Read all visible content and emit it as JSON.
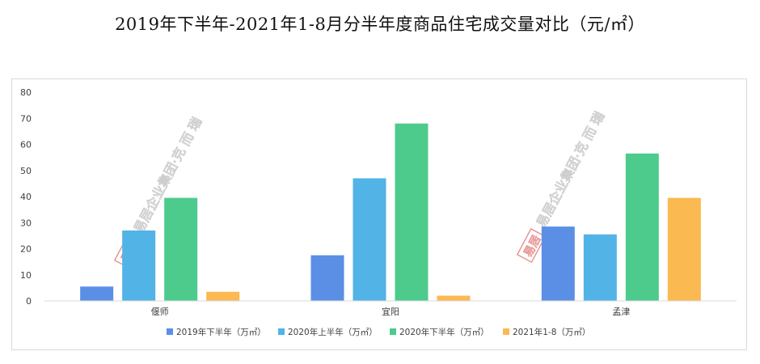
{
  "title": "2019年下半年-2021年1-8月分半年度商品住宅成交量对比（元/㎡）",
  "watermark": {
    "text": "易居企业集团·克 而 瑞",
    "seal_text": "易居"
  },
  "colors": {
    "series": [
      "#5b8fe6",
      "#52b3e6",
      "#4ccb8d",
      "#fbb952"
    ],
    "axis": "#d9d9d9",
    "text": "#404040",
    "watermark": "#c9c9c9",
    "seal": "#e58a8a"
  },
  "chart_data": {
    "type": "bar",
    "title": "2019年下半年-2021年1-8月分半年度商品住宅成交量对比（元/㎡）",
    "categories": [
      "偃师",
      "宜阳",
      "孟津"
    ],
    "series": [
      {
        "name": "2019年下半年（万㎡）",
        "values": [
          5.5,
          17.5,
          28.5
        ]
      },
      {
        "name": "2020年上半年（万㎡）",
        "values": [
          27,
          47,
          25.5
        ]
      },
      {
        "name": "2020年下半年（万㎡）",
        "values": [
          39.5,
          68,
          56.5
        ]
      },
      {
        "name": "2021年1-8（万㎡）",
        "values": [
          3.5,
          2,
          39.5
        ]
      }
    ],
    "ylim": [
      0,
      80
    ],
    "yticks": [
      0,
      10,
      20,
      30,
      40,
      50,
      60,
      70,
      80
    ],
    "xlabel": "",
    "ylabel": "",
    "grid": false,
    "legend_position": "bottom"
  }
}
